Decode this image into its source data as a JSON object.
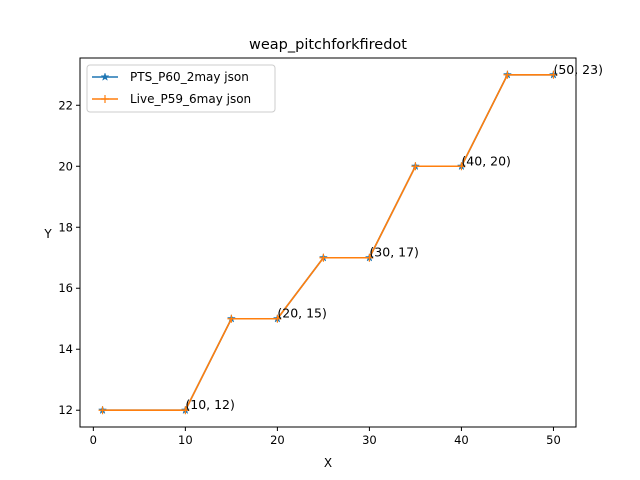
{
  "chart_data": {
    "type": "line",
    "title": "weap_pitchforkfiredot",
    "xlabel": "X",
    "ylabel": "Y",
    "xlim": [
      -1.45,
      52.45
    ],
    "ylim": [
      11.45,
      23.55
    ],
    "xticks": [
      0,
      10,
      20,
      30,
      40,
      50
    ],
    "yticks": [
      12,
      14,
      16,
      18,
      20,
      22
    ],
    "grid": false,
    "legend_position": "upper-left",
    "series": [
      {
        "name": "PTS_P60_2may json",
        "color": "#1f77b4",
        "marker": "star",
        "x": [
          1,
          10,
          15,
          20,
          25,
          30,
          35,
          40,
          45,
          50
        ],
        "y": [
          12,
          12,
          15,
          15,
          17,
          17,
          20,
          20,
          23,
          23
        ]
      },
      {
        "name": "Live_P59_6may json",
        "color": "#ff7f0e",
        "marker": "plus",
        "x": [
          1,
          10,
          15,
          20,
          25,
          30,
          35,
          40,
          45,
          50
        ],
        "y": [
          12,
          12,
          15,
          15,
          17,
          17,
          20,
          20,
          23,
          23
        ]
      }
    ],
    "annotations": [
      {
        "x": 10,
        "y": 12,
        "text": "(10, 12)"
      },
      {
        "x": 20,
        "y": 15,
        "text": "(20, 15)"
      },
      {
        "x": 30,
        "y": 17,
        "text": "(30, 17)"
      },
      {
        "x": 40,
        "y": 20,
        "text": "(40, 20)"
      },
      {
        "x": 50,
        "y": 23,
        "text": "(50, 23)"
      }
    ]
  }
}
